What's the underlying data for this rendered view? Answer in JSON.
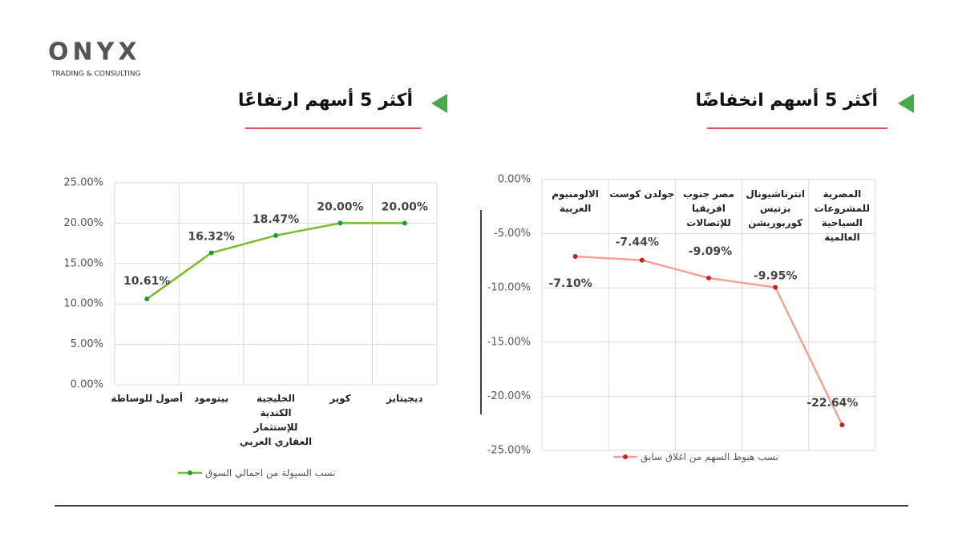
{
  "logo": {
    "name": "ONYX",
    "tagline": "TRADING & CONSULTING"
  },
  "chart_data": [
    {
      "type": "line",
      "title": "أكثر 5 أسهم ارتفاعًا",
      "categories": [
        "أصول للوساطة",
        "بيتومود",
        "الخليجية\nالكندية\nللإستثمار\nالعقاري العربي",
        "كوير",
        "ديجيتايز"
      ],
      "series": [
        {
          "name": "نسب السيولة من اجمالي السوق",
          "color": "#7cbb2a",
          "values": [
            10.61,
            16.32,
            18.47,
            20.0,
            20.0
          ],
          "value_labels": [
            "10.61%",
            "16.32%",
            "18.47%",
            "20.00%",
            "20.00%"
          ]
        }
      ],
      "ylim": [
        0,
        25
      ],
      "yticks": [
        {
          "value": 0,
          "label": "0.00%"
        },
        {
          "value": 5,
          "label": "5.00%"
        },
        {
          "value": 10,
          "label": "10.00%"
        },
        {
          "value": 15,
          "label": "15.00%"
        },
        {
          "value": 20,
          "label": "20.00%"
        },
        {
          "value": 25,
          "label": "25.00%"
        }
      ],
      "grid": true,
      "legend": "bottom"
    },
    {
      "type": "line",
      "title": "أكثر 5 أسهم انخفاضًا",
      "categories": [
        "الالومنيوم\nالعربية",
        "جولدن كوست",
        "مصر جنوب\nافريقيا\nللإتصالات",
        "انترناشيونال\nبزنيس\nكوربوريشن",
        "المصرية\nللمشروعات\nالسياحية\nالعالمية"
      ],
      "series": [
        {
          "name": "نسب هبوط السهم من اغلاق سابق",
          "color": "#f4a19a",
          "values": [
            -7.1,
            -7.44,
            -9.09,
            -9.95,
            -22.64
          ],
          "value_labels": [
            "-7.10%",
            "-7.44%",
            "-9.09%",
            "-9.95%",
            "-22.64%"
          ]
        }
      ],
      "ylim": [
        -25,
        0
      ],
      "yticks": [
        {
          "value": -25,
          "label": "-25.00%"
        },
        {
          "value": -20,
          "label": "-20.00%"
        },
        {
          "value": -15,
          "label": "-15.00%"
        },
        {
          "value": -10,
          "label": "-10.00%"
        },
        {
          "value": -5,
          "label": "-5.00%"
        },
        {
          "value": 0,
          "label": "0.00%"
        }
      ],
      "grid": true,
      "legend": "bottom"
    }
  ]
}
